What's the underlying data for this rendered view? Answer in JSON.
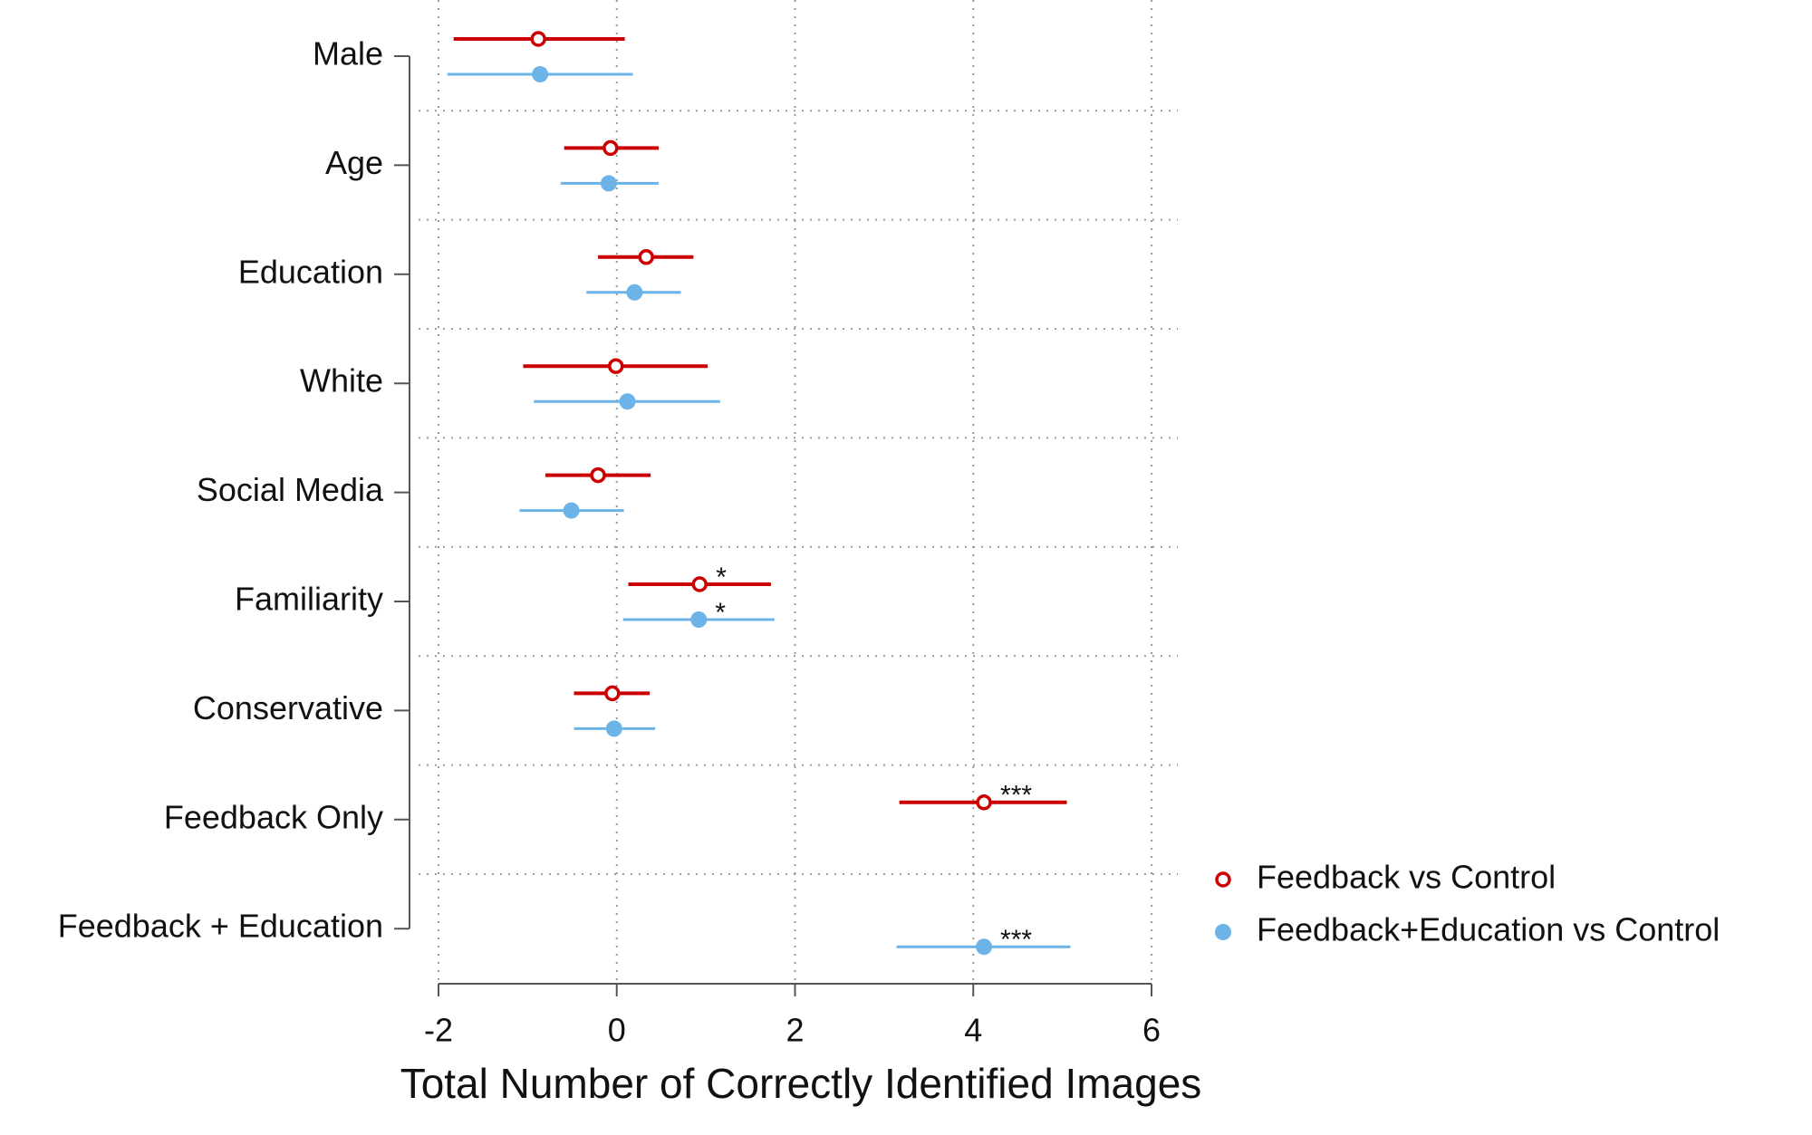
{
  "chart_data": {
    "type": "coefplot",
    "x_label": "Total Number of Correctly Identified Images",
    "categories": [
      "Male",
      "Age",
      "Education",
      "White",
      "Social Media",
      "Familiarity",
      "Conservative",
      "Feedback Only",
      "Feedback + Education"
    ],
    "series": [
      {
        "name": "Feedback vs Control",
        "color": "#cc0000",
        "marker": "hollow",
        "values": [
          -0.88,
          -0.07,
          0.33,
          -0.01,
          -0.21,
          0.93,
          -0.05,
          4.12,
          null
        ],
        "lower": [
          -1.83,
          -0.59,
          -0.21,
          -1.05,
          -0.8,
          0.13,
          -0.48,
          3.17,
          null
        ],
        "upper": [
          0.09,
          0.47,
          0.86,
          1.02,
          0.38,
          1.73,
          0.37,
          5.05,
          null
        ],
        "significance": [
          null,
          null,
          null,
          null,
          null,
          "*",
          null,
          "***",
          null
        ]
      },
      {
        "name": "Feedback+Education vs Control",
        "color": "#6cb4e8",
        "marker": "filled",
        "values": [
          -0.86,
          -0.09,
          0.2,
          0.12,
          -0.51,
          0.92,
          -0.03,
          null,
          4.12
        ],
        "lower": [
          -1.9,
          -0.63,
          -0.34,
          -0.93,
          -1.09,
          0.07,
          -0.48,
          null,
          3.14
        ],
        "upper": [
          0.18,
          0.47,
          0.72,
          1.16,
          0.08,
          1.77,
          0.43,
          null,
          5.09
        ],
        "significance": [
          null,
          null,
          null,
          null,
          null,
          "*",
          null,
          null,
          "***"
        ]
      }
    ],
    "xlim": [
      -2,
      6
    ],
    "xticks": [
      -2,
      0,
      2,
      4,
      6
    ],
    "grid": true,
    "legend": "bottom-right"
  }
}
